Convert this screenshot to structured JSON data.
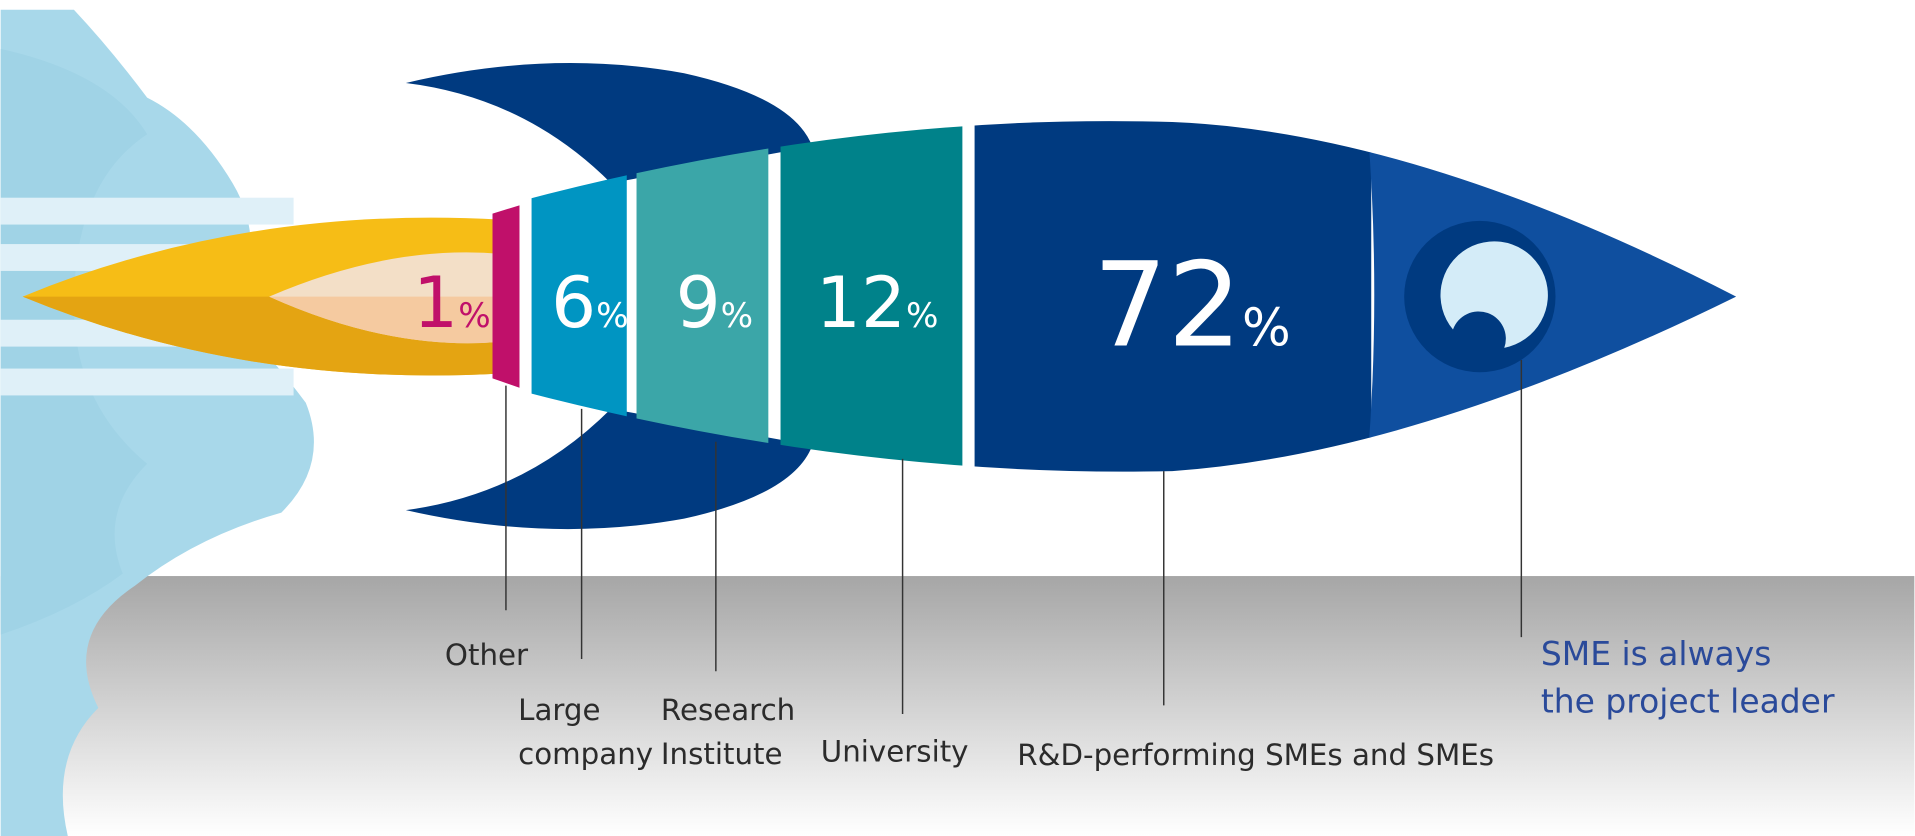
{
  "unit": "%",
  "segments": [
    {
      "label": [
        "Other"
      ],
      "value": 1
    },
    {
      "label": [
        "Large",
        "company"
      ],
      "value": 6
    },
    {
      "label": [
        "Research",
        "Institute"
      ],
      "value": 9
    },
    {
      "label": [
        "University"
      ],
      "value": 12
    },
    {
      "label": [
        "R&D-performing SMEs and SMEs"
      ],
      "value": 72
    }
  ],
  "note": [
    "SME is always",
    "the project leader"
  ]
}
